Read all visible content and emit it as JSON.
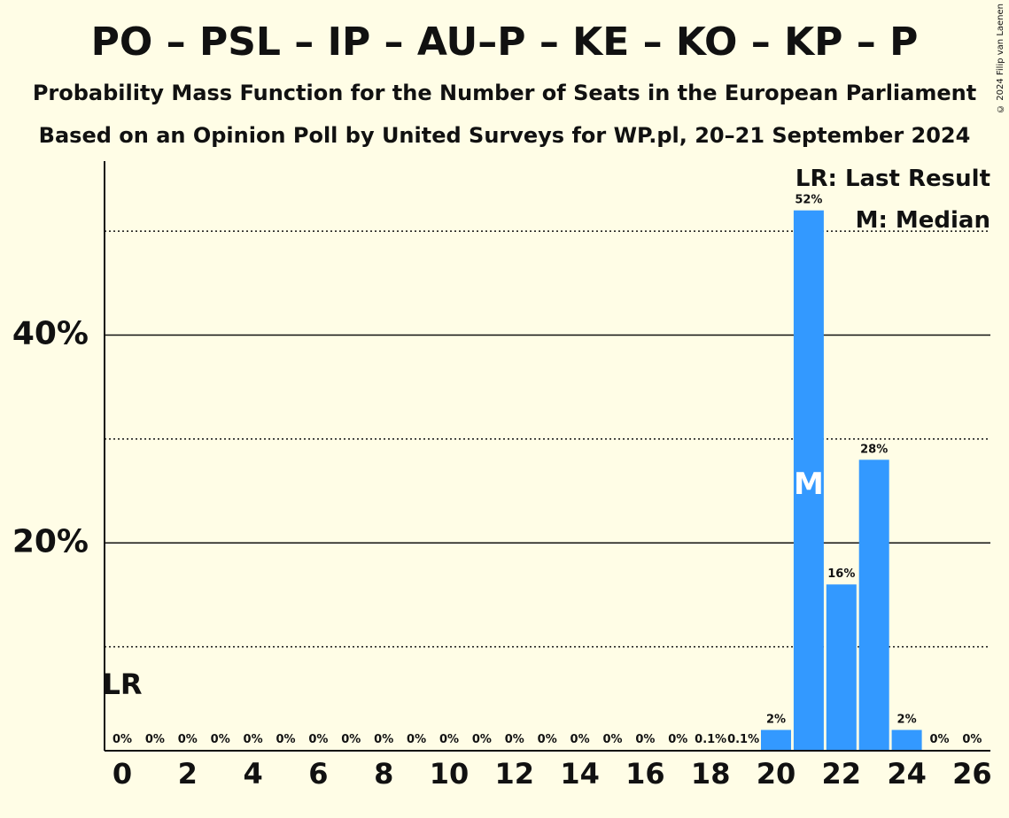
{
  "title": "PO – PSL – IP – AU–P – KE – KO – KP – P",
  "subtitle1": "Probability Mass Function for the Number of Seats in the European Parliament",
  "subtitle2": "Based on an Opinion Poll by United Surveys for WP.pl, 20–21 September 2024",
  "copyright": "© 2024 Filip van Laenen",
  "legend": {
    "last_result": "LR: Last Result",
    "median": "M: Median"
  },
  "colors": {
    "bar": "#3399ff",
    "background": "#fffde6",
    "text": "#111111"
  },
  "chart_data": {
    "type": "bar",
    "categories": [
      0,
      1,
      2,
      3,
      4,
      5,
      6,
      7,
      8,
      9,
      10,
      11,
      12,
      13,
      14,
      15,
      16,
      17,
      18,
      19,
      20,
      21,
      22,
      23,
      24,
      25,
      26
    ],
    "values": [
      0,
      0,
      0,
      0,
      0,
      0,
      0,
      0,
      0,
      0,
      0,
      0,
      0,
      0,
      0,
      0,
      0,
      0,
      0.1,
      0.1,
      2,
      52,
      16,
      28,
      2,
      0,
      0
    ],
    "labels": [
      "0%",
      "0%",
      "0%",
      "0%",
      "0%",
      "0%",
      "0%",
      "0%",
      "0%",
      "0%",
      "0%",
      "0%",
      "0%",
      "0%",
      "0%",
      "0%",
      "0%",
      "0%",
      "0.1%",
      "0.1%",
      "2%",
      "52%",
      "16%",
      "28%",
      "2%",
      "0%",
      "0%"
    ],
    "x_ticks": [
      "0",
      "2",
      "4",
      "6",
      "8",
      "10",
      "12",
      "14",
      "16",
      "18",
      "20",
      "22",
      "24",
      "26"
    ],
    "y_ticks": [
      "20%",
      "40%"
    ],
    "ylim": [
      0,
      57
    ],
    "last_result_seat": 0,
    "last_result_label": "LR",
    "median_seat": 21,
    "median_label": "M",
    "grid": "solid at 20% and 40%, dotted at 10%, 30%, 50%"
  }
}
